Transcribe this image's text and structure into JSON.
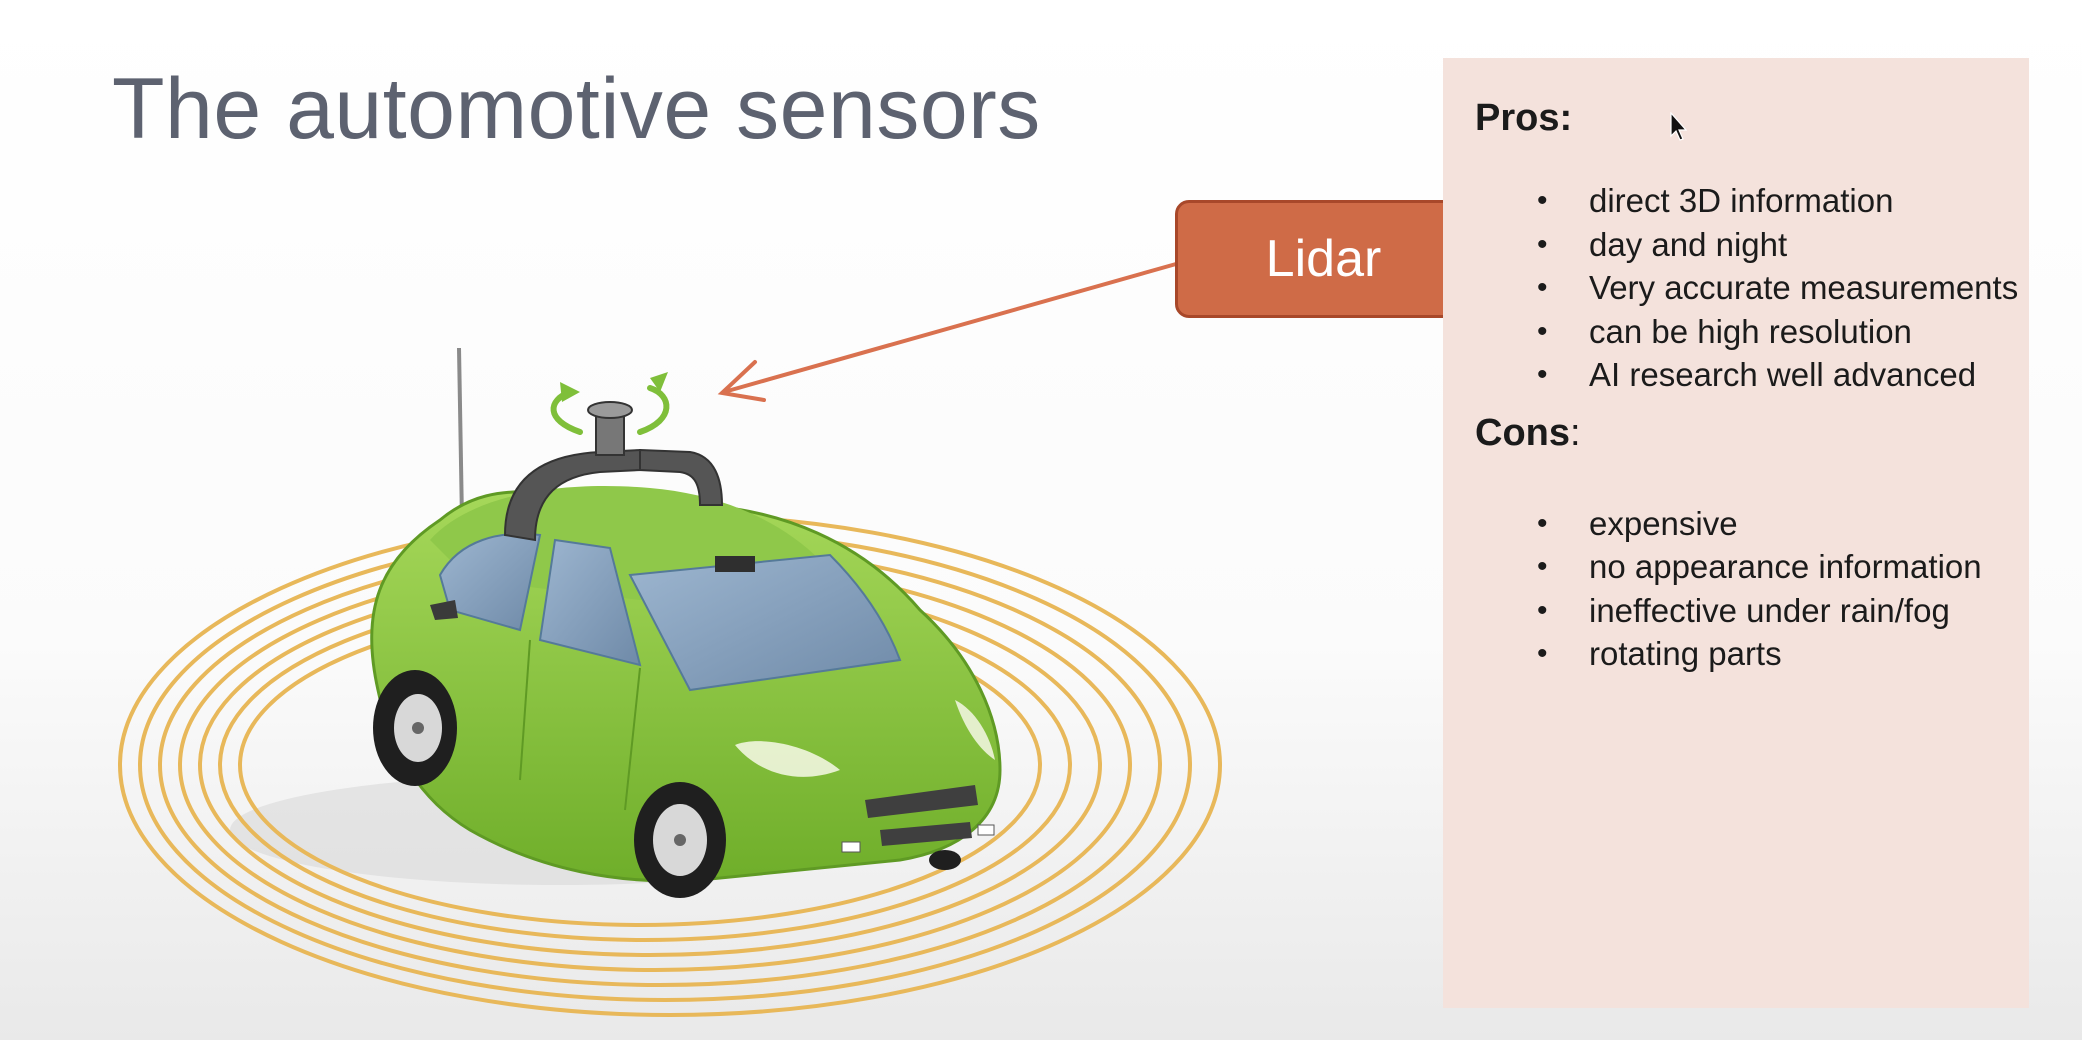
{
  "slide": {
    "title": "The automotive sensors",
    "callout_label": "Lidar"
  },
  "panel": {
    "pros_heading": "Pros",
    "pros_colon": ":",
    "pros": [
      "direct 3D information",
      "day and night",
      "Very accurate measurements",
      "can be high resolution",
      "AI research well advanced"
    ],
    "cons_heading": "Cons",
    "cons_colon": ":",
    "cons": [
      "expensive",
      "no appearance information",
      "ineffective under rain/fog",
      "rotating parts"
    ]
  },
  "colors": {
    "title": "#5d6270",
    "callout_fill": "#cf6b47",
    "arrow": "#d9714f",
    "panel_bg": "#f4e2dc",
    "car_body": "#8cc63f",
    "sensor_rings": "#e8b85a"
  },
  "icons": {
    "car": "lidar-car-illustration",
    "rotation": "rotation-arrow-icon",
    "cursor": "mouse-pointer-icon"
  }
}
